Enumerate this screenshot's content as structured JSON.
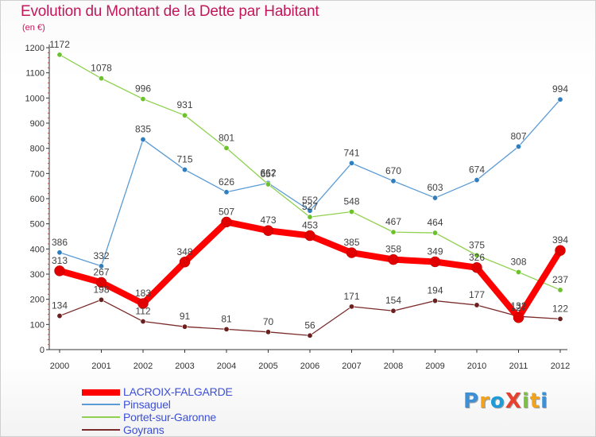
{
  "chart_data": {
    "type": "line",
    "title": "Evolution du Montant de la Dette par Habitant",
    "unit": "(en €)",
    "x": [
      "2000",
      "2001",
      "2002",
      "2003",
      "2004",
      "2005",
      "2006",
      "2007",
      "2008",
      "2009",
      "2010",
      "2011",
      "2012"
    ],
    "ylim": [
      0,
      1200
    ],
    "yticks": [
      "0",
      "100",
      "200",
      "300",
      "400",
      "500",
      "600",
      "700",
      "800",
      "900",
      "1000",
      "1100",
      "1200"
    ],
    "grid": false,
    "legend_position": "bottom-left",
    "series": [
      {
        "name": "LACROIX-FALGARDE",
        "color": "#ff0000",
        "marker_color": "#e00000",
        "values": [
          313,
          267,
          183,
          348,
          507,
          473,
          453,
          385,
          358,
          349,
          326,
          127,
          394
        ],
        "labels": [
          "313",
          "267",
          "183",
          "348",
          "507",
          "473",
          "453",
          "385",
          "358",
          "349",
          "326",
          "127",
          "394"
        ]
      },
      {
        "name": "Pinsaguel",
        "color": "#5b9bd5",
        "marker_color": "#2f7ec0",
        "values": [
          386,
          332,
          835,
          715,
          626,
          662,
          552,
          741,
          670,
          603,
          674,
          807,
          994
        ],
        "labels": [
          "386",
          "332",
          "835",
          "715",
          "626",
          "662",
          "552",
          "741",
          "670",
          "603",
          "674",
          "807",
          "994"
        ]
      },
      {
        "name": "Portet-sur-Garonne",
        "color": "#8fd14f",
        "marker_color": "#6cc22d",
        "values": [
          1172,
          1078,
          996,
          931,
          801,
          657,
          527,
          548,
          467,
          464,
          375,
          308,
          237
        ],
        "labels": [
          "1172",
          "1078",
          "996",
          "931",
          "801",
          "657",
          "527",
          "548",
          "467",
          "464",
          "375",
          "308",
          "237"
        ]
      },
      {
        "name": "Goyrans",
        "color": "#7b2a2a",
        "marker_color": "#6b1f1f",
        "values": [
          134,
          198,
          112,
          91,
          81,
          70,
          56,
          171,
          154,
          194,
          177,
          132,
          122
        ],
        "labels": [
          "134",
          "198",
          "112",
          "91",
          "81",
          "70",
          "56",
          "171",
          "154",
          "194",
          "177",
          "132",
          "122"
        ]
      }
    ]
  },
  "brand": {
    "text": "ProXiti",
    "colors": [
      "#3d8fd6",
      "#f2a21b",
      "#1f9bd7",
      "#e8402f",
      "#7cc242",
      "#f2a21b",
      "#3d8fd6"
    ]
  }
}
